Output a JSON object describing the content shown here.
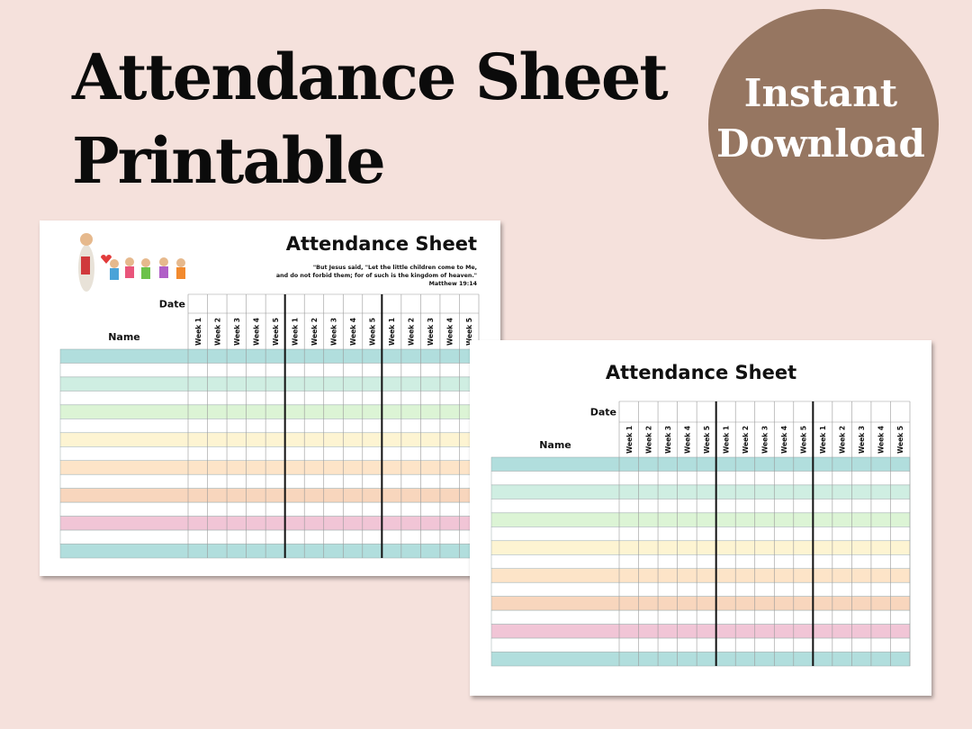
{
  "header": {
    "title_lines": [
      "Attendance Sheet",
      "Printable"
    ]
  },
  "badge": {
    "lines": [
      "Instant",
      "Download"
    ]
  },
  "sheets": [
    {
      "title": "Attendance Sheet",
      "quote_lines": [
        "\"But Jesus said, \"Let the little children come to Me,",
        "and do not forbid them; for of such is the kingdom of heaven.\"",
        "Matthew 19:14"
      ],
      "date_label": "Date",
      "name_label": "Name",
      "weeks": [
        "Week 1",
        "Week 2",
        "Week 3",
        "Week 4",
        "Week 5",
        "Week 1",
        "Week 2",
        "Week 3",
        "Week 4",
        "Week 5",
        "Week 1",
        "Week 2",
        "Week 3",
        "Week 4",
        "Week 5"
      ]
    },
    {
      "title": "Attendance Sheet",
      "date_label": "Date",
      "name_label": "Name",
      "weeks": [
        "Week 1",
        "Week 2",
        "Week 3",
        "Week 4",
        "Week 5",
        "Week 1",
        "Week 2",
        "Week 3",
        "Week 4",
        "Week 5",
        "Week 1",
        "Week 2",
        "Week 3",
        "Week 4",
        "Week 5"
      ]
    }
  ]
}
